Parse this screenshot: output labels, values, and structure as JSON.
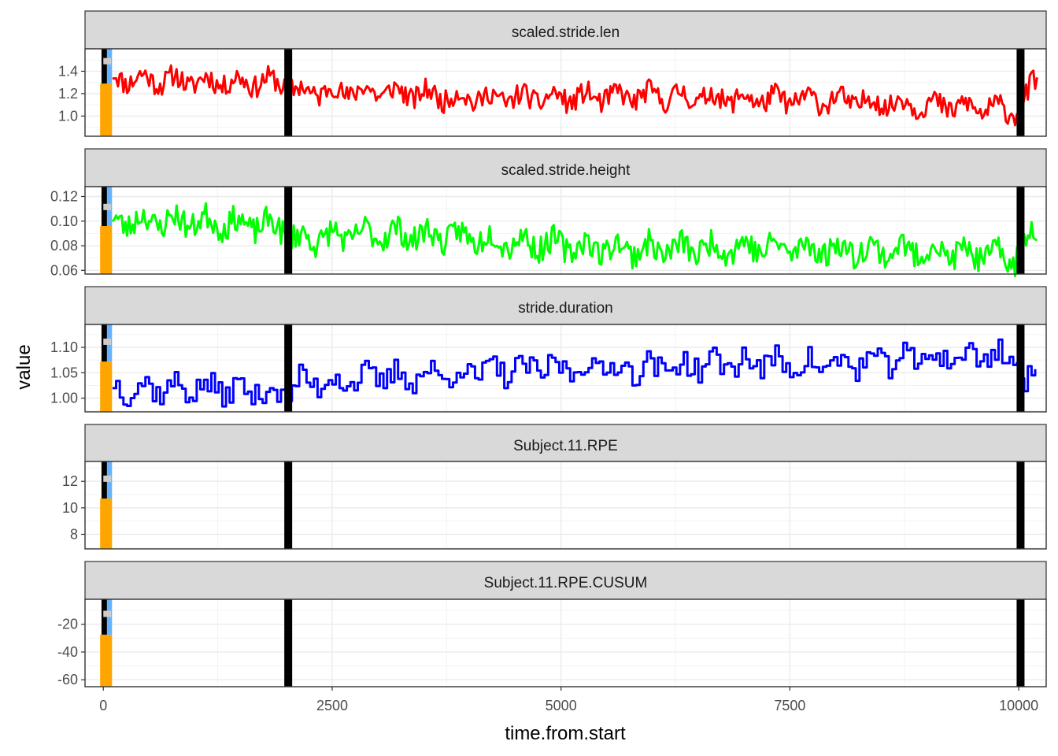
{
  "chart_data": {
    "type": "line",
    "facet_layout": "vertical-stacked",
    "xlabel": "time.from.start",
    "ylabel": "value",
    "xlim": [
      -200,
      10300
    ],
    "x_ticks": [
      0,
      2500,
      5000,
      7500,
      10000
    ],
    "x_tick_labels": [
      "0",
      "2500",
      "5000",
      "7500",
      "10000"
    ],
    "grid": true,
    "theme": "bw",
    "strip_fill": "#d9d9d9",
    "vertical_lines": {
      "x": [
        2020,
        10020
      ],
      "color": "#000000"
    },
    "start_markers": [
      {
        "name": "black-bar",
        "x": [
          -20,
          40
        ],
        "color": "#000000"
      },
      {
        "name": "blue-bar",
        "x": [
          40,
          95
        ],
        "color": "#66b3ff"
      },
      {
        "name": "orange-bar",
        "x": [
          -35,
          95
        ],
        "color": "#ffa500"
      },
      {
        "name": "gray-bar",
        "x": [
          0,
          85
        ],
        "color": "#cccccc"
      }
    ],
    "facets": [
      {
        "title": "scaled.stride.len",
        "ylim": [
          0.82,
          1.6
        ],
        "y_ticks": [
          1.0,
          1.2,
          1.4
        ],
        "y_tick_labels": [
          "1.0",
          "1.2",
          "1.4"
        ],
        "color": "#ff0000",
        "markers": {
          "orange_top": 1.29,
          "gray_y": 1.49
        },
        "series": {
          "x": [
            100,
            1000,
            2000,
            2100,
            3000,
            4000,
            5000,
            6000,
            7000,
            8000,
            9000,
            9950,
            10050,
            10200
          ],
          "values": [
            1.34,
            1.31,
            1.3,
            1.22,
            1.22,
            1.16,
            1.16,
            1.18,
            1.15,
            1.14,
            1.1,
            1.05,
            1.1,
            1.35
          ],
          "amplitude": 0.2,
          "step": 20,
          "seed": 11
        }
      },
      {
        "title": "scaled.stride.height",
        "ylim": [
          0.057,
          0.128
        ],
        "y_ticks": [
          0.06,
          0.08,
          0.1,
          0.12
        ],
        "y_tick_labels": [
          "0.06",
          "0.08",
          "0.10",
          "0.12"
        ],
        "color": "#00ff00",
        "markers": {
          "orange_top": 0.096,
          "gray_y": 0.1115
        },
        "series": {
          "x": [
            100,
            1000,
            2000,
            2100,
            3000,
            4000,
            5000,
            6000,
            7000,
            8000,
            9000,
            9950,
            10050,
            10200
          ],
          "values": [
            0.1,
            0.1,
            0.095,
            0.085,
            0.09,
            0.087,
            0.08,
            0.077,
            0.079,
            0.077,
            0.076,
            0.07,
            0.08,
            0.095
          ],
          "amplitude": 0.022,
          "step": 20,
          "seed": 23
        }
      },
      {
        "title": "stride.duration",
        "ylim": [
          0.973,
          1.145
        ],
        "y_ticks": [
          1.0,
          1.05,
          1.1
        ],
        "y_tick_labels": [
          "1.00",
          "1.05",
          "1.10"
        ],
        "color": "#0000ff",
        "markers": {
          "orange_top": 1.072,
          "gray_y": 1.111
        },
        "series": {
          "x": [
            100,
            1000,
            2000,
            2100,
            3000,
            4000,
            5000,
            6000,
            7000,
            8000,
            9000,
            9950,
            10050,
            10200
          ],
          "values": [
            1.02,
            1.02,
            1.01,
            1.03,
            1.04,
            1.05,
            1.06,
            1.06,
            1.07,
            1.065,
            1.08,
            1.085,
            1.02,
            1.04
          ],
          "amplitude": 0.05,
          "step": 40,
          "seed": 37
        }
      },
      {
        "title": "Subject.11.RPE",
        "ylim": [
          6.9,
          13.5
        ],
        "y_ticks": [
          8,
          10,
          12
        ],
        "y_tick_labels": [
          "8",
          "10",
          "12"
        ],
        "color": "#000000",
        "markers": {
          "orange_top": 10.7,
          "gray_y": 12.2
        }
      },
      {
        "title": "Subject.11.RPE.CUSUM",
        "ylim": [
          -65,
          -2
        ],
        "y_ticks": [
          -60,
          -40,
          -20
        ],
        "y_tick_labels": [
          "-60",
          "-40",
          "-20"
        ],
        "color": "#000000",
        "markers": {
          "orange_top": -27.5,
          "gray_y": -12.5
        }
      }
    ]
  }
}
